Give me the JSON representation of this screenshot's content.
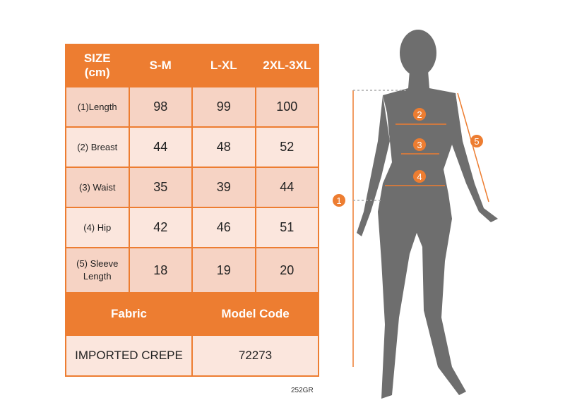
{
  "table": {
    "headers": [
      "SIZE\n(cm)",
      "S-M",
      "L-XL",
      "2XL-3XL"
    ],
    "rows": [
      {
        "label": "(1)Length",
        "values": [
          "98",
          "99",
          "100"
        ]
      },
      {
        "label": "(2) Breast",
        "values": [
          "44",
          "48",
          "52"
        ]
      },
      {
        "label": "(3) Waist",
        "values": [
          "35",
          "39",
          "44"
        ]
      },
      {
        "label": "(4) Hip",
        "values": [
          "42",
          "46",
          "51"
        ]
      },
      {
        "label": "(5) Sleeve Length",
        "values": [
          "18",
          "19",
          "20"
        ]
      }
    ],
    "footer_headers": [
      "Fabric",
      "Model Code"
    ],
    "footer_values": [
      "IMPORTED CREPE",
      "72273"
    ]
  },
  "product_code": "252GR",
  "markers": [
    "1",
    "2",
    "3",
    "4",
    "5"
  ],
  "colors": {
    "accent": "#ED7D31",
    "cell_dark": "#F6D3C4",
    "cell_light": "#FBE6DD",
    "silhouette": "#6E6E6E"
  }
}
